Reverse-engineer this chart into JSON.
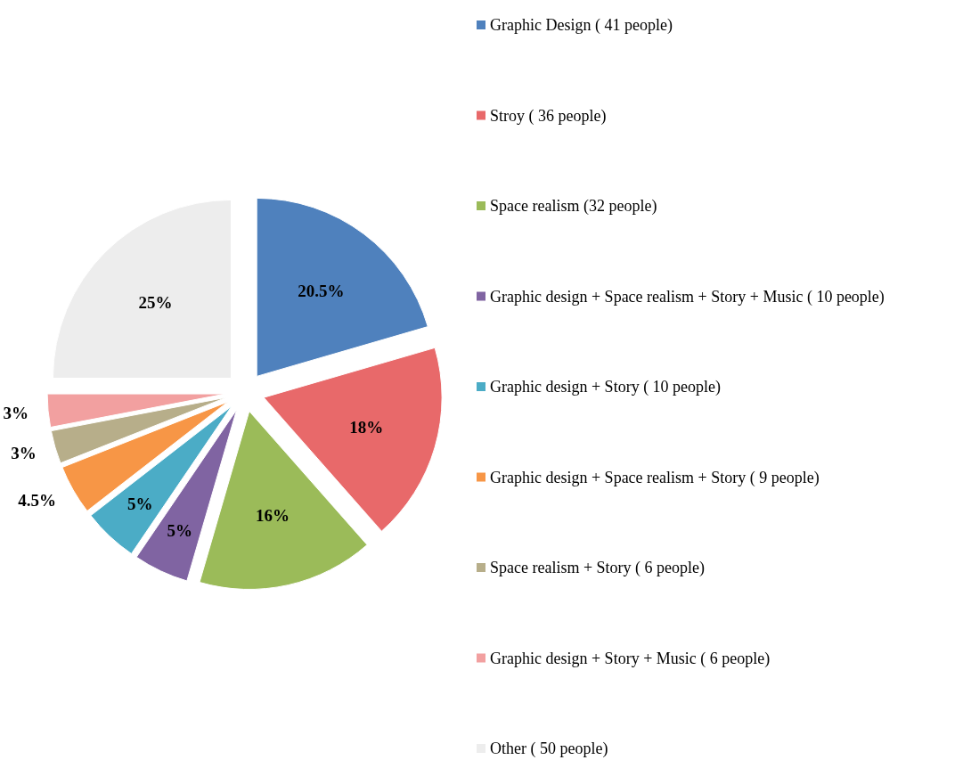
{
  "chart_data": {
    "type": "pie",
    "categories": [
      "Graphic Design ( 41 people)",
      "Stroy ( 36 people)",
      "Space realism (32 people)",
      "Graphic design + Space realism + Story + Music ( 10 people)",
      "Graphic design + Story ( 10 people)",
      "Graphic design + Space realism + Story ( 9 people)",
      "Space realism + Story ( 6 people)",
      "Graphic design + Story + Music ( 6 people)",
      "Other ( 50 people)"
    ],
    "values": [
      20.5,
      18,
      16,
      5,
      5,
      4.5,
      3,
      3,
      25
    ],
    "value_labels": [
      "20.5%",
      "18%",
      "16%",
      "5%",
      "5%",
      "4.5%",
      "3%",
      "3%",
      "25%"
    ],
    "colors": [
      "#4f81bd",
      "#e8696a",
      "#9bbb59",
      "#8064a2",
      "#4bacc6",
      "#f79646",
      "#b7ae8a",
      "#f2a0a0",
      "#ededed"
    ],
    "legend": "right"
  }
}
